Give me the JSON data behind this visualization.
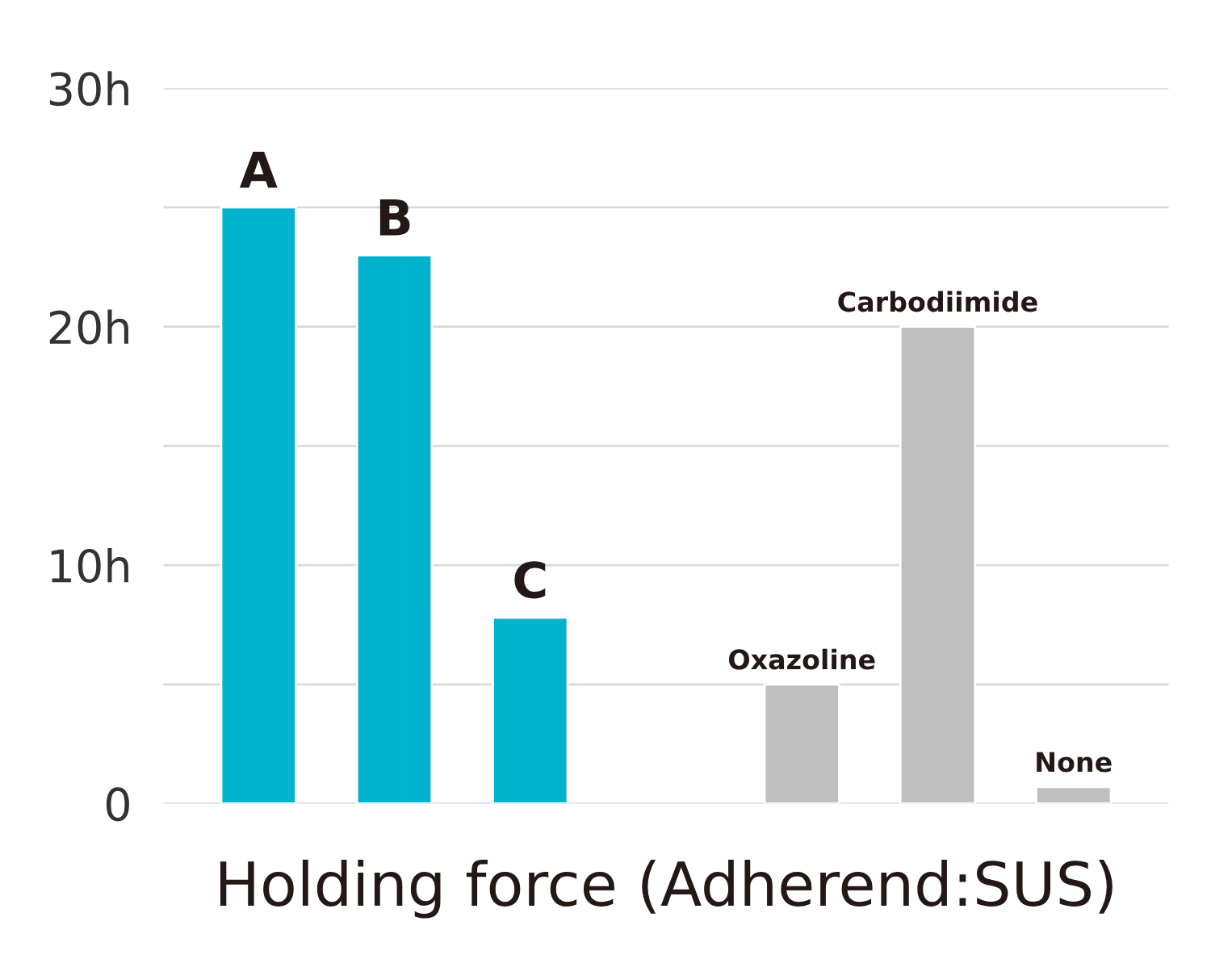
{
  "chart_data": {
    "type": "bar",
    "categories": [
      "A",
      "B",
      "C",
      null,
      "Oxazoline",
      "Carbodiimide",
      "None"
    ],
    "values": [
      25,
      23,
      7.8,
      null,
      5,
      20,
      0.7
    ],
    "colors": [
      "#00b2cc",
      "#00b2cc",
      "#00b2cc",
      "#00b2cc",
      "#bfbfbf",
      "#bfbfbf",
      "#bfbfbf"
    ],
    "xlabel": "Holding force (Adherend:SUS)",
    "ylim": [
      0,
      30
    ],
    "yticks": [
      {
        "value": 0,
        "label": "0"
      },
      {
        "value": 5,
        "label": null
      },
      {
        "value": 10,
        "label": "10h"
      },
      {
        "value": 15,
        "label": null
      },
      {
        "value": 20,
        "label": "20h"
      },
      {
        "value": 25,
        "label": null
      },
      {
        "value": 30,
        "label": "30h"
      }
    ],
    "grid": "y"
  }
}
